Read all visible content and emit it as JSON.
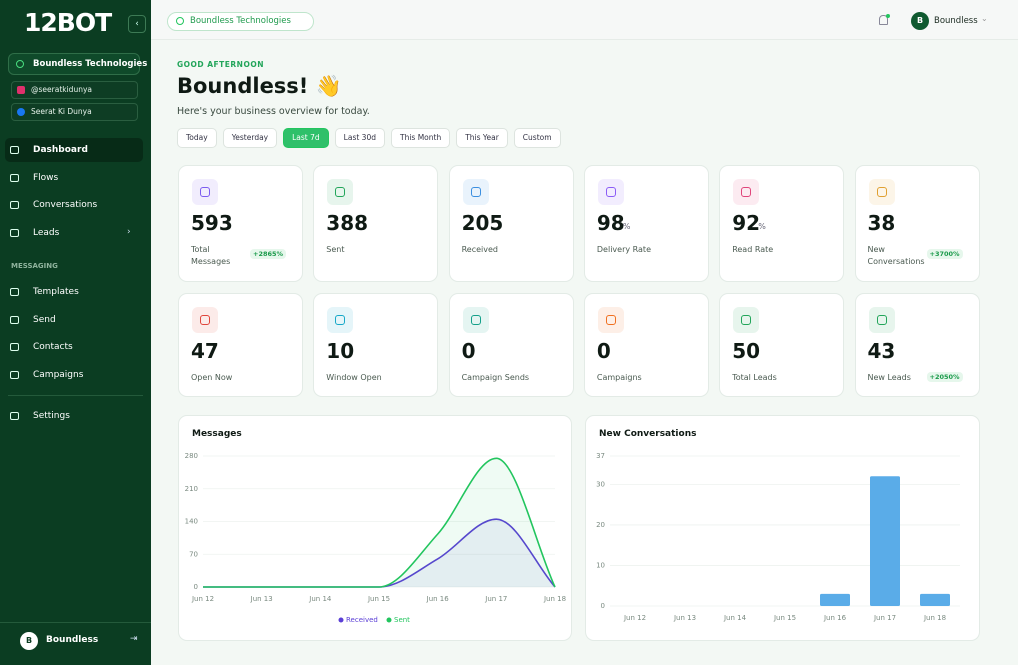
{
  "sidebar": {
    "logo": "12BOT",
    "workspace": "Boundless Technologies",
    "accounts": [
      {
        "name": "@seeratkidunya",
        "color": "#e1306c"
      },
      {
        "name": "Seerat Ki Dunya",
        "color": "#1877f2"
      }
    ],
    "nav": [
      "Dashboard",
      "Flows",
      "Conversations",
      "Leads"
    ],
    "active": 0,
    "section": "MESSAGING",
    "messaging": [
      "Templates",
      "Send",
      "Contacts",
      "Campaigns"
    ],
    "settings": "Settings",
    "user": {
      "initial": "B",
      "name": "Boundless"
    }
  },
  "topbar": {
    "workspace": "Boundless Technologies",
    "user": {
      "initial": "B",
      "name": "Boundless"
    }
  },
  "header": {
    "greeting": "GOOD AFTERNOON",
    "title": "Boundless! 👋",
    "subtitle": "Here's your business overview for today.",
    "filters": [
      "Today",
      "Yesterday",
      "Last 7d",
      "Last 30d",
      "This Month",
      "This Year",
      "Custom"
    ],
    "active_filter": 2
  },
  "stats": [
    {
      "value": 593,
      "label": "Total Messages",
      "badge": "+2865%",
      "color": "#7c5cf0"
    },
    {
      "value": 388,
      "label": "Sent",
      "color": "#22a55a"
    },
    {
      "value": 205,
      "label": "Received",
      "color": "#3b8fe0"
    },
    {
      "value": 98,
      "unit": "%",
      "label": "Delivery Rate",
      "color": "#8b5cf6"
    },
    {
      "value": 92,
      "unit": "%",
      "label": "Read Rate",
      "color": "#e0457b"
    },
    {
      "value": 38,
      "label": "New Conversations",
      "badge": "+3700%",
      "color": "#e0a030"
    },
    {
      "value": 47,
      "label": "Open Now",
      "color": "#e0453b"
    },
    {
      "value": 10,
      "label": "Window Open",
      "color": "#16a8c8"
    },
    {
      "value": 0,
      "label": "Campaign Sends",
      "color": "#14a08a"
    },
    {
      "value": 0,
      "label": "Campaigns",
      "color": "#f07020"
    },
    {
      "value": 50,
      "label": "Total Leads",
      "color": "#22a55a"
    },
    {
      "value": 43,
      "label": "New Leads",
      "badge": "+2050%",
      "color": "#22a55a"
    }
  ],
  "chart_data": [
    {
      "type": "line",
      "title": "Messages",
      "categories": [
        "Jun 12",
        "Jun 13",
        "Jun 14",
        "Jun 15",
        "Jun 16",
        "Jun 17",
        "Jun 18"
      ],
      "series": [
        {
          "name": "Received",
          "color": "#5b3fd6",
          "values": [
            0,
            0,
            0,
            0,
            60,
            145,
            0
          ]
        },
        {
          "name": "Sent",
          "color": "#22c55e",
          "values": [
            0,
            0,
            0,
            0,
            113,
            275,
            0
          ]
        }
      ],
      "ylim": [
        0,
        280
      ],
      "yticks": [
        0,
        70,
        140,
        210,
        280
      ],
      "grid": true,
      "legend": "bottom"
    },
    {
      "type": "bar",
      "title": "New Conversations",
      "categories": [
        "Jun 12",
        "Jun 13",
        "Jun 14",
        "Jun 15",
        "Jun 16",
        "Jun 17",
        "Jun 18"
      ],
      "values": [
        0,
        0,
        0,
        0,
        3,
        32,
        3
      ],
      "color": "#5aace8",
      "ylim": [
        0,
        37
      ],
      "yticks": [
        0,
        10,
        20,
        30,
        37
      ],
      "grid": true
    }
  ]
}
